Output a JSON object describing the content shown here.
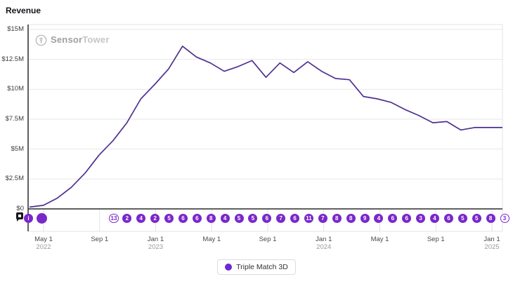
{
  "title": "Revenue",
  "watermark": {
    "part1": "Sensor",
    "part2": "Tower"
  },
  "legend": {
    "label": "Triple Match 3D"
  },
  "colors": {
    "line": "#503090",
    "badge": "#7a28c9",
    "badge_text": "#ffffff",
    "grid": "#e7e7e7",
    "strip_grid": "#e2e2e2",
    "border": "#dfe4e2",
    "axis": "#2b2b2b",
    "legend_dot": "#6d28d9"
  },
  "chart_data": {
    "type": "line",
    "title": "Revenue",
    "ylim": [
      0,
      15
    ],
    "grid": true,
    "legend_position": "bottom",
    "y_ticks": [
      {
        "label": "$15M",
        "value": 15
      },
      {
        "label": "$12.5M",
        "value": 12.5
      },
      {
        "label": "$10M",
        "value": 10
      },
      {
        "label": "$7.5M",
        "value": 7.5
      },
      {
        "label": "$5M",
        "value": 5
      },
      {
        "label": "$2.5M",
        "value": 2.5
      },
      {
        "label": "$0",
        "value": 0
      }
    ],
    "x_ticks": [
      {
        "label": "May 1",
        "year": "2022"
      },
      {
        "label": "Sep 1",
        "year": ""
      },
      {
        "label": "Jan 1",
        "year": "2023"
      },
      {
        "label": "May 1",
        "year": ""
      },
      {
        "label": "Sep 1",
        "year": ""
      },
      {
        "label": "Jan 1",
        "year": "2024"
      },
      {
        "label": "May 1",
        "year": ""
      },
      {
        "label": "Sep 1",
        "year": ""
      },
      {
        "label": "Jan 1",
        "year": "2025"
      }
    ],
    "series": [
      {
        "name": "Triple Match 3D",
        "unit": "USD (millions)",
        "x": [
          "2022-04",
          "2022-05",
          "2022-06",
          "2022-07",
          "2022-08",
          "2022-09",
          "2022-10",
          "2022-11",
          "2022-12",
          "2023-01",
          "2023-02",
          "2023-03",
          "2023-04",
          "2023-05",
          "2023-06",
          "2023-07",
          "2023-08",
          "2023-09",
          "2023-10",
          "2023-11",
          "2023-12",
          "2024-01",
          "2024-02",
          "2024-03",
          "2024-04",
          "2024-05",
          "2024-06",
          "2024-07",
          "2024-08",
          "2024-09",
          "2024-10",
          "2024-11",
          "2024-12",
          "2025-01",
          "2025-02"
        ],
        "values": [
          0.15,
          0.3,
          0.9,
          1.8,
          3.0,
          4.5,
          5.7,
          7.2,
          9.2,
          10.4,
          11.7,
          13.6,
          12.7,
          12.2,
          11.5,
          11.9,
          12.4,
          11.0,
          12.2,
          11.4,
          12.3,
          11.5,
          10.9,
          10.8,
          9.4,
          9.2,
          8.9,
          8.3,
          7.8,
          7.2,
          7.3,
          6.6,
          6.8,
          6.8,
          6.8
        ]
      }
    ]
  },
  "timeline": {
    "info_label": "i",
    "badges": [
      {
        "label": "13",
        "style": "outlined"
      },
      {
        "label": "2",
        "style": "solid"
      },
      {
        "label": "4",
        "style": "solid"
      },
      {
        "label": "2",
        "style": "solid"
      },
      {
        "label": "5",
        "style": "solid"
      },
      {
        "label": "6",
        "style": "solid"
      },
      {
        "label": "6",
        "style": "solid"
      },
      {
        "label": "8",
        "style": "solid"
      },
      {
        "label": "4",
        "style": "solid"
      },
      {
        "label": "5",
        "style": "solid"
      },
      {
        "label": "5",
        "style": "solid"
      },
      {
        "label": "6",
        "style": "solid"
      },
      {
        "label": "7",
        "style": "solid"
      },
      {
        "label": "6",
        "style": "solid"
      },
      {
        "label": "11",
        "style": "solid"
      },
      {
        "label": "7",
        "style": "solid"
      },
      {
        "label": "8",
        "style": "solid"
      },
      {
        "label": "8",
        "style": "solid"
      },
      {
        "label": "9",
        "style": "solid"
      },
      {
        "label": "4",
        "style": "solid"
      },
      {
        "label": "6",
        "style": "solid"
      },
      {
        "label": "6",
        "style": "solid"
      },
      {
        "label": "3",
        "style": "solid"
      },
      {
        "label": "4",
        "style": "solid"
      },
      {
        "label": "6",
        "style": "solid"
      },
      {
        "label": "5",
        "style": "solid"
      },
      {
        "label": "5",
        "style": "solid"
      },
      {
        "label": "8",
        "style": "solid"
      },
      {
        "label": "3",
        "style": "outlined"
      }
    ]
  }
}
